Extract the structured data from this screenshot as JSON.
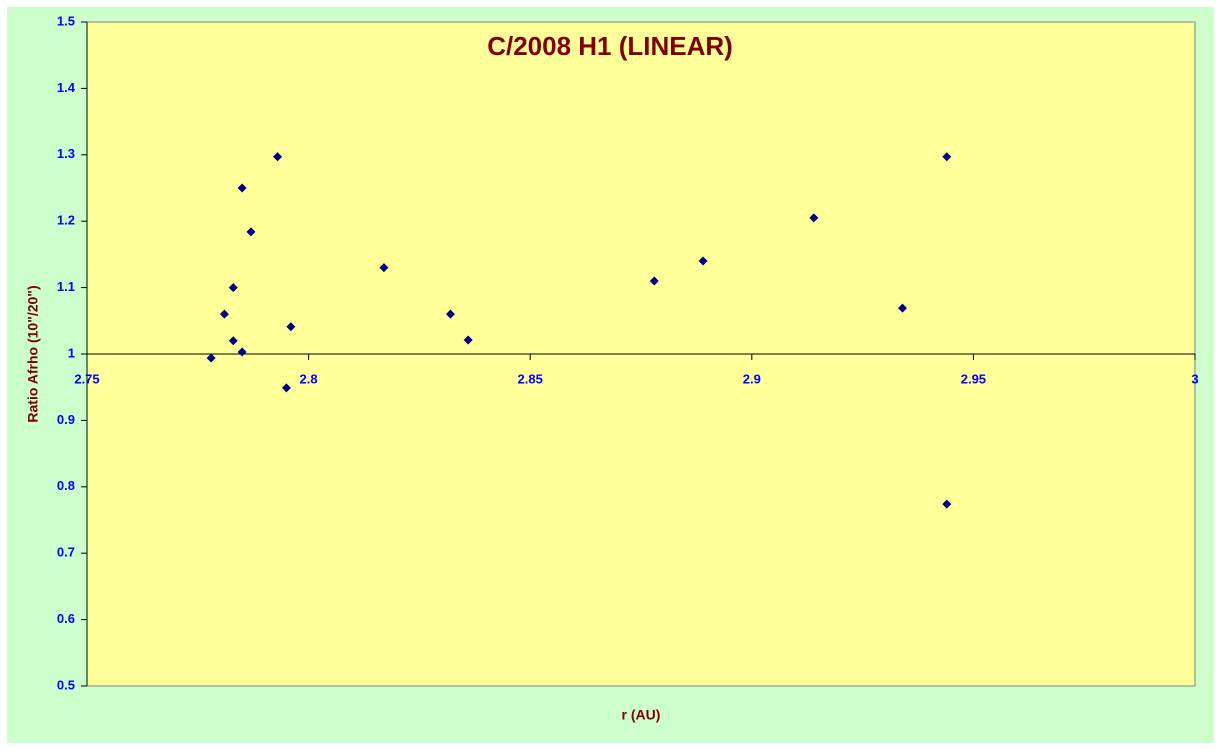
{
  "chart_data": {
    "type": "scatter",
    "title": "C/2008 H1 (LINEAR)",
    "x_label": "r (AU)",
    "y_label": "Ratio Afrho (10\"/20\")",
    "series": [
      {
        "name": "Ratio",
        "color": "#000080",
        "x": [
          2.778,
          2.781,
          2.783,
          2.783,
          2.785,
          2.785,
          2.787,
          2.793,
          2.795,
          2.796,
          2.817,
          2.832,
          2.836,
          2.878,
          2.889,
          2.914,
          2.934,
          2.944,
          2.944
        ],
        "values": [
          0.994,
          1.06,
          1.1,
          1.02,
          1.25,
          1.003,
          1.184,
          1.297,
          0.949,
          1.041,
          1.13,
          1.06,
          1.021,
          1.11,
          1.14,
          1.205,
          1.069,
          1.297,
          0.774
        ]
      }
    ],
    "xlim": [
      2.75,
      3
    ],
    "xticks": [
      2.75,
      2.8,
      2.85,
      2.9,
      2.95,
      3
    ],
    "ylim": [
      0.5,
      1.5
    ],
    "yticks": [
      0.5,
      0.6,
      0.7,
      0.8,
      0.9,
      1,
      1.1,
      1.2,
      1.3,
      1.4,
      1.5
    ],
    "x_axis_at": 1,
    "grid": false
  }
}
